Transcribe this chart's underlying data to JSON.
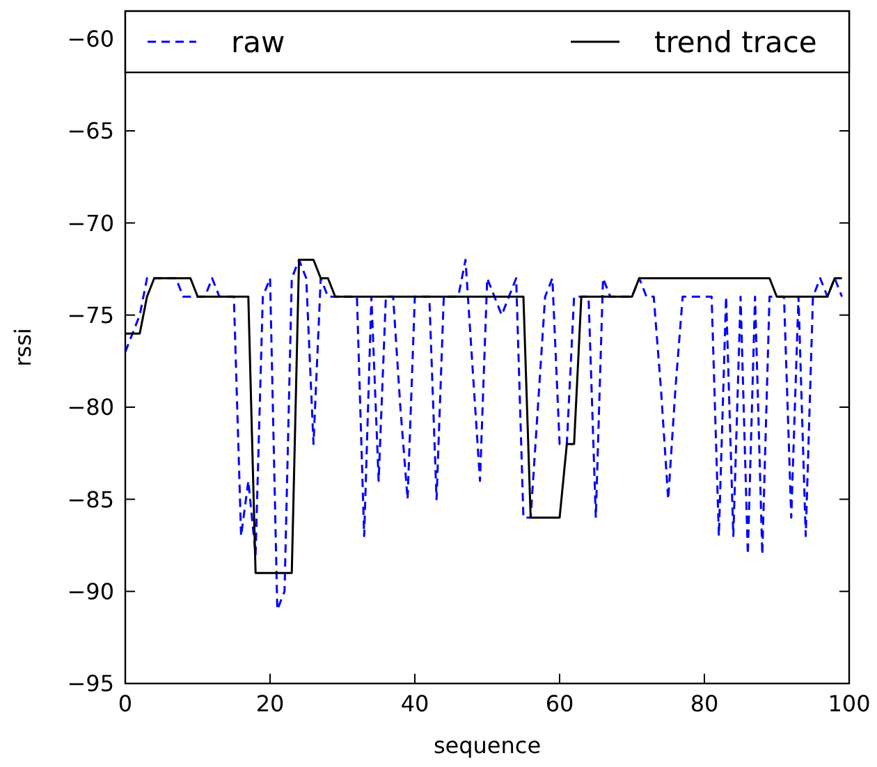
{
  "chart_data": {
    "type": "line",
    "xlabel": "sequence",
    "ylabel": "rssi",
    "x": [
      0,
      1,
      2,
      3,
      4,
      5,
      6,
      7,
      8,
      9,
      10,
      11,
      12,
      13,
      14,
      15,
      16,
      17,
      18,
      19,
      20,
      21,
      22,
      23,
      24,
      25,
      26,
      27,
      28,
      29,
      30,
      31,
      32,
      33,
      34,
      35,
      36,
      37,
      38,
      39,
      40,
      41,
      42,
      43,
      44,
      45,
      46,
      47,
      48,
      49,
      50,
      51,
      52,
      53,
      54,
      55,
      56,
      57,
      58,
      59,
      60,
      61,
      62,
      63,
      64,
      65,
      66,
      67,
      68,
      69,
      70,
      71,
      72,
      73,
      74,
      75,
      76,
      77,
      78,
      79,
      80,
      81,
      82,
      83,
      84,
      85,
      86,
      87,
      88,
      89,
      90,
      91,
      92,
      93,
      94,
      95,
      96,
      97,
      98,
      99
    ],
    "series": [
      {
        "name": "raw",
        "color": "#0000ff",
        "line_style": "dashed",
        "values": [
          -77,
          -76,
          -75,
          -73,
          -73,
          -73,
          -73,
          -73,
          -74,
          -74,
          -74,
          -74,
          -73,
          -74,
          -74,
          -74,
          -87,
          -84,
          -88,
          -74,
          -73,
          -91,
          -90,
          -73,
          -72,
          -73,
          -82,
          -73,
          -74,
          -74,
          -74,
          -74,
          -74,
          -87,
          -74,
          -84,
          -74,
          -74,
          -80,
          -85,
          -74,
          -74,
          -74,
          -85,
          -74,
          -74,
          -74,
          -72,
          -78,
          -84,
          -73,
          -74,
          -75,
          -74,
          -73,
          -86,
          -86,
          -80,
          -74,
          -73,
          -82,
          -82,
          -74,
          -74,
          -74,
          -86,
          -73,
          -74,
          -74,
          -74,
          -74,
          -73,
          -74,
          -74,
          -79,
          -85,
          -79,
          -74,
          -74,
          -74,
          -74,
          -74,
          -87,
          -74,
          -87,
          -74,
          -88,
          -74,
          -88,
          -74,
          -74,
          -74,
          -86,
          -74,
          -87,
          -74,
          -73,
          -74,
          -73,
          -74
        ]
      },
      {
        "name": "trend trace",
        "color": "#000000",
        "line_style": "solid",
        "values": [
          -76,
          -76,
          -76,
          -74,
          -73,
          -73,
          -73,
          -73,
          -73,
          -73,
          -74,
          -74,
          -74,
          -74,
          -74,
          -74,
          -74,
          -74,
          -89,
          -89,
          -89,
          -89,
          -89,
          -89,
          -72,
          -72,
          -72,
          -73,
          -73,
          -74,
          -74,
          -74,
          -74,
          -74,
          -74,
          -74,
          -74,
          -74,
          -74,
          -74,
          -74,
          -74,
          -74,
          -74,
          -74,
          -74,
          -74,
          -74,
          -74,
          -74,
          -74,
          -74,
          -74,
          -74,
          -74,
          -74,
          -86,
          -86,
          -86,
          -86,
          -86,
          -82,
          -82,
          -74,
          -74,
          -74,
          -74,
          -74,
          -74,
          -74,
          -74,
          -73,
          -73,
          -73,
          -73,
          -73,
          -73,
          -73,
          -73,
          -73,
          -73,
          -73,
          -73,
          -73,
          -73,
          -73,
          -73,
          -73,
          -73,
          -73,
          -74,
          -74,
          -74,
          -74,
          -74,
          -74,
          -74,
          -74,
          -73,
          -73
        ]
      }
    ],
    "xlim": [
      0,
      100
    ],
    "xticks": [
      0,
      20,
      40,
      60,
      80,
      100
    ],
    "ylim": [
      -95,
      -58.5
    ],
    "yticks": [
      {
        "value": -95,
        "label": "−95"
      },
      {
        "value": -90,
        "label": "−90"
      },
      {
        "value": -85,
        "label": "−85"
      },
      {
        "value": -80,
        "label": "−80"
      },
      {
        "value": -75,
        "label": "−75"
      },
      {
        "value": -70,
        "label": "−70"
      },
      {
        "value": -65,
        "label": "−65"
      },
      {
        "value": -60,
        "label": "−60"
      }
    ],
    "legend": "top",
    "grid": false
  }
}
